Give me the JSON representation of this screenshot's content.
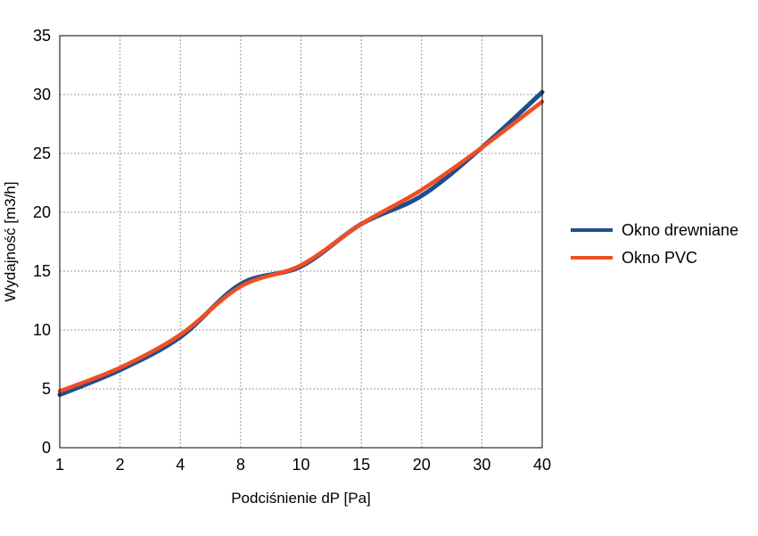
{
  "chart_data": {
    "type": "line",
    "title": "",
    "xlabel": "Podciśnienie dP [Pa]",
    "ylabel": "Wydajność [m3/h]",
    "categories": [
      "1",
      "2",
      "4",
      "8",
      "10",
      "15",
      "20",
      "30",
      "40"
    ],
    "yticks": [
      "0",
      "5",
      "10",
      "15",
      "20",
      "25",
      "30",
      "35"
    ],
    "ylim": [
      0,
      35
    ],
    "grid": true,
    "legend_position": "right",
    "series": [
      {
        "name": "Okno drewniane",
        "color": "#1f4e8c",
        "values": [
          4.5,
          6.6,
          9.4,
          13.9,
          15.4,
          19.0,
          21.4,
          25.5,
          30.2
        ]
      },
      {
        "name": "Okno PVC",
        "color": "#f04e23",
        "values": [
          4.8,
          6.8,
          9.6,
          13.7,
          15.5,
          19.0,
          21.9,
          25.5,
          29.4
        ]
      }
    ]
  }
}
